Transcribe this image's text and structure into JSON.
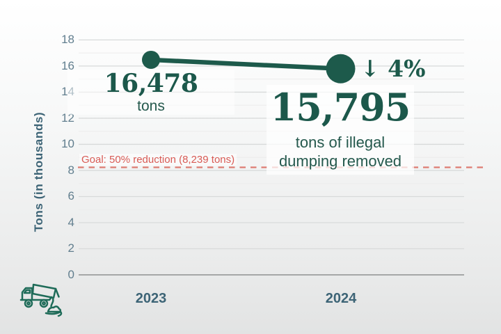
{
  "colors": {
    "green": "#1d5a4b",
    "dark_green_text": "#1c584b",
    "teal_caption": "#25594d",
    "slate": "#3d6476",
    "tick_label": "#617e8e",
    "goal_red_text": "#d85b55",
    "goal_red_dash": "#dd7b72",
    "grid_major": "#d8dada",
    "grid_minor": "#ececec",
    "axis_line": "#a5a7a7"
  },
  "y_axis": {
    "title": "Tons  (in thousands)",
    "ticks": [
      18,
      16,
      14,
      12,
      10,
      8,
      6,
      4,
      2,
      0
    ]
  },
  "x_axis": {
    "labels": [
      "2023",
      "2024"
    ]
  },
  "goal": {
    "label": "Goal: 50% reduction (8,239 tons)",
    "value_tons": 8239
  },
  "point_2023": {
    "value": "16,478",
    "caption": "tons"
  },
  "point_2024": {
    "value": "15,795",
    "caption_line1": "tons of illegal",
    "caption_line2": "dumping removed",
    "change": "↓ 4%"
  },
  "icons": {
    "truck": "dump-truck-icon"
  },
  "chart_data": {
    "type": "line",
    "categories": [
      "2023",
      "2024"
    ],
    "series": [
      {
        "name": "tons of illegal dumping removed",
        "values": [
          16478,
          15795
        ]
      }
    ],
    "title": "",
    "xlabel": "",
    "ylabel": "Tons  (in thousands)",
    "y_units": "thousands of tons",
    "ylim": [
      0,
      18
    ],
    "yticks": [
      18,
      16,
      14,
      12,
      10,
      8,
      6,
      4,
      2,
      0
    ],
    "grid": true,
    "minor_grid": true,
    "legend": false,
    "goal_line": {
      "value": 8239,
      "style": "dashed",
      "label": "Goal: 50% reduction (8,239 tons)"
    },
    "annotations": [
      {
        "target": "2023",
        "text": "16,478 tons"
      },
      {
        "target": "2024",
        "text": "15,795 tons of illegal dumping removed"
      },
      {
        "target": "2024",
        "text": "↓ 4%",
        "meaning": "4 percent decrease vs 2023"
      }
    ]
  }
}
